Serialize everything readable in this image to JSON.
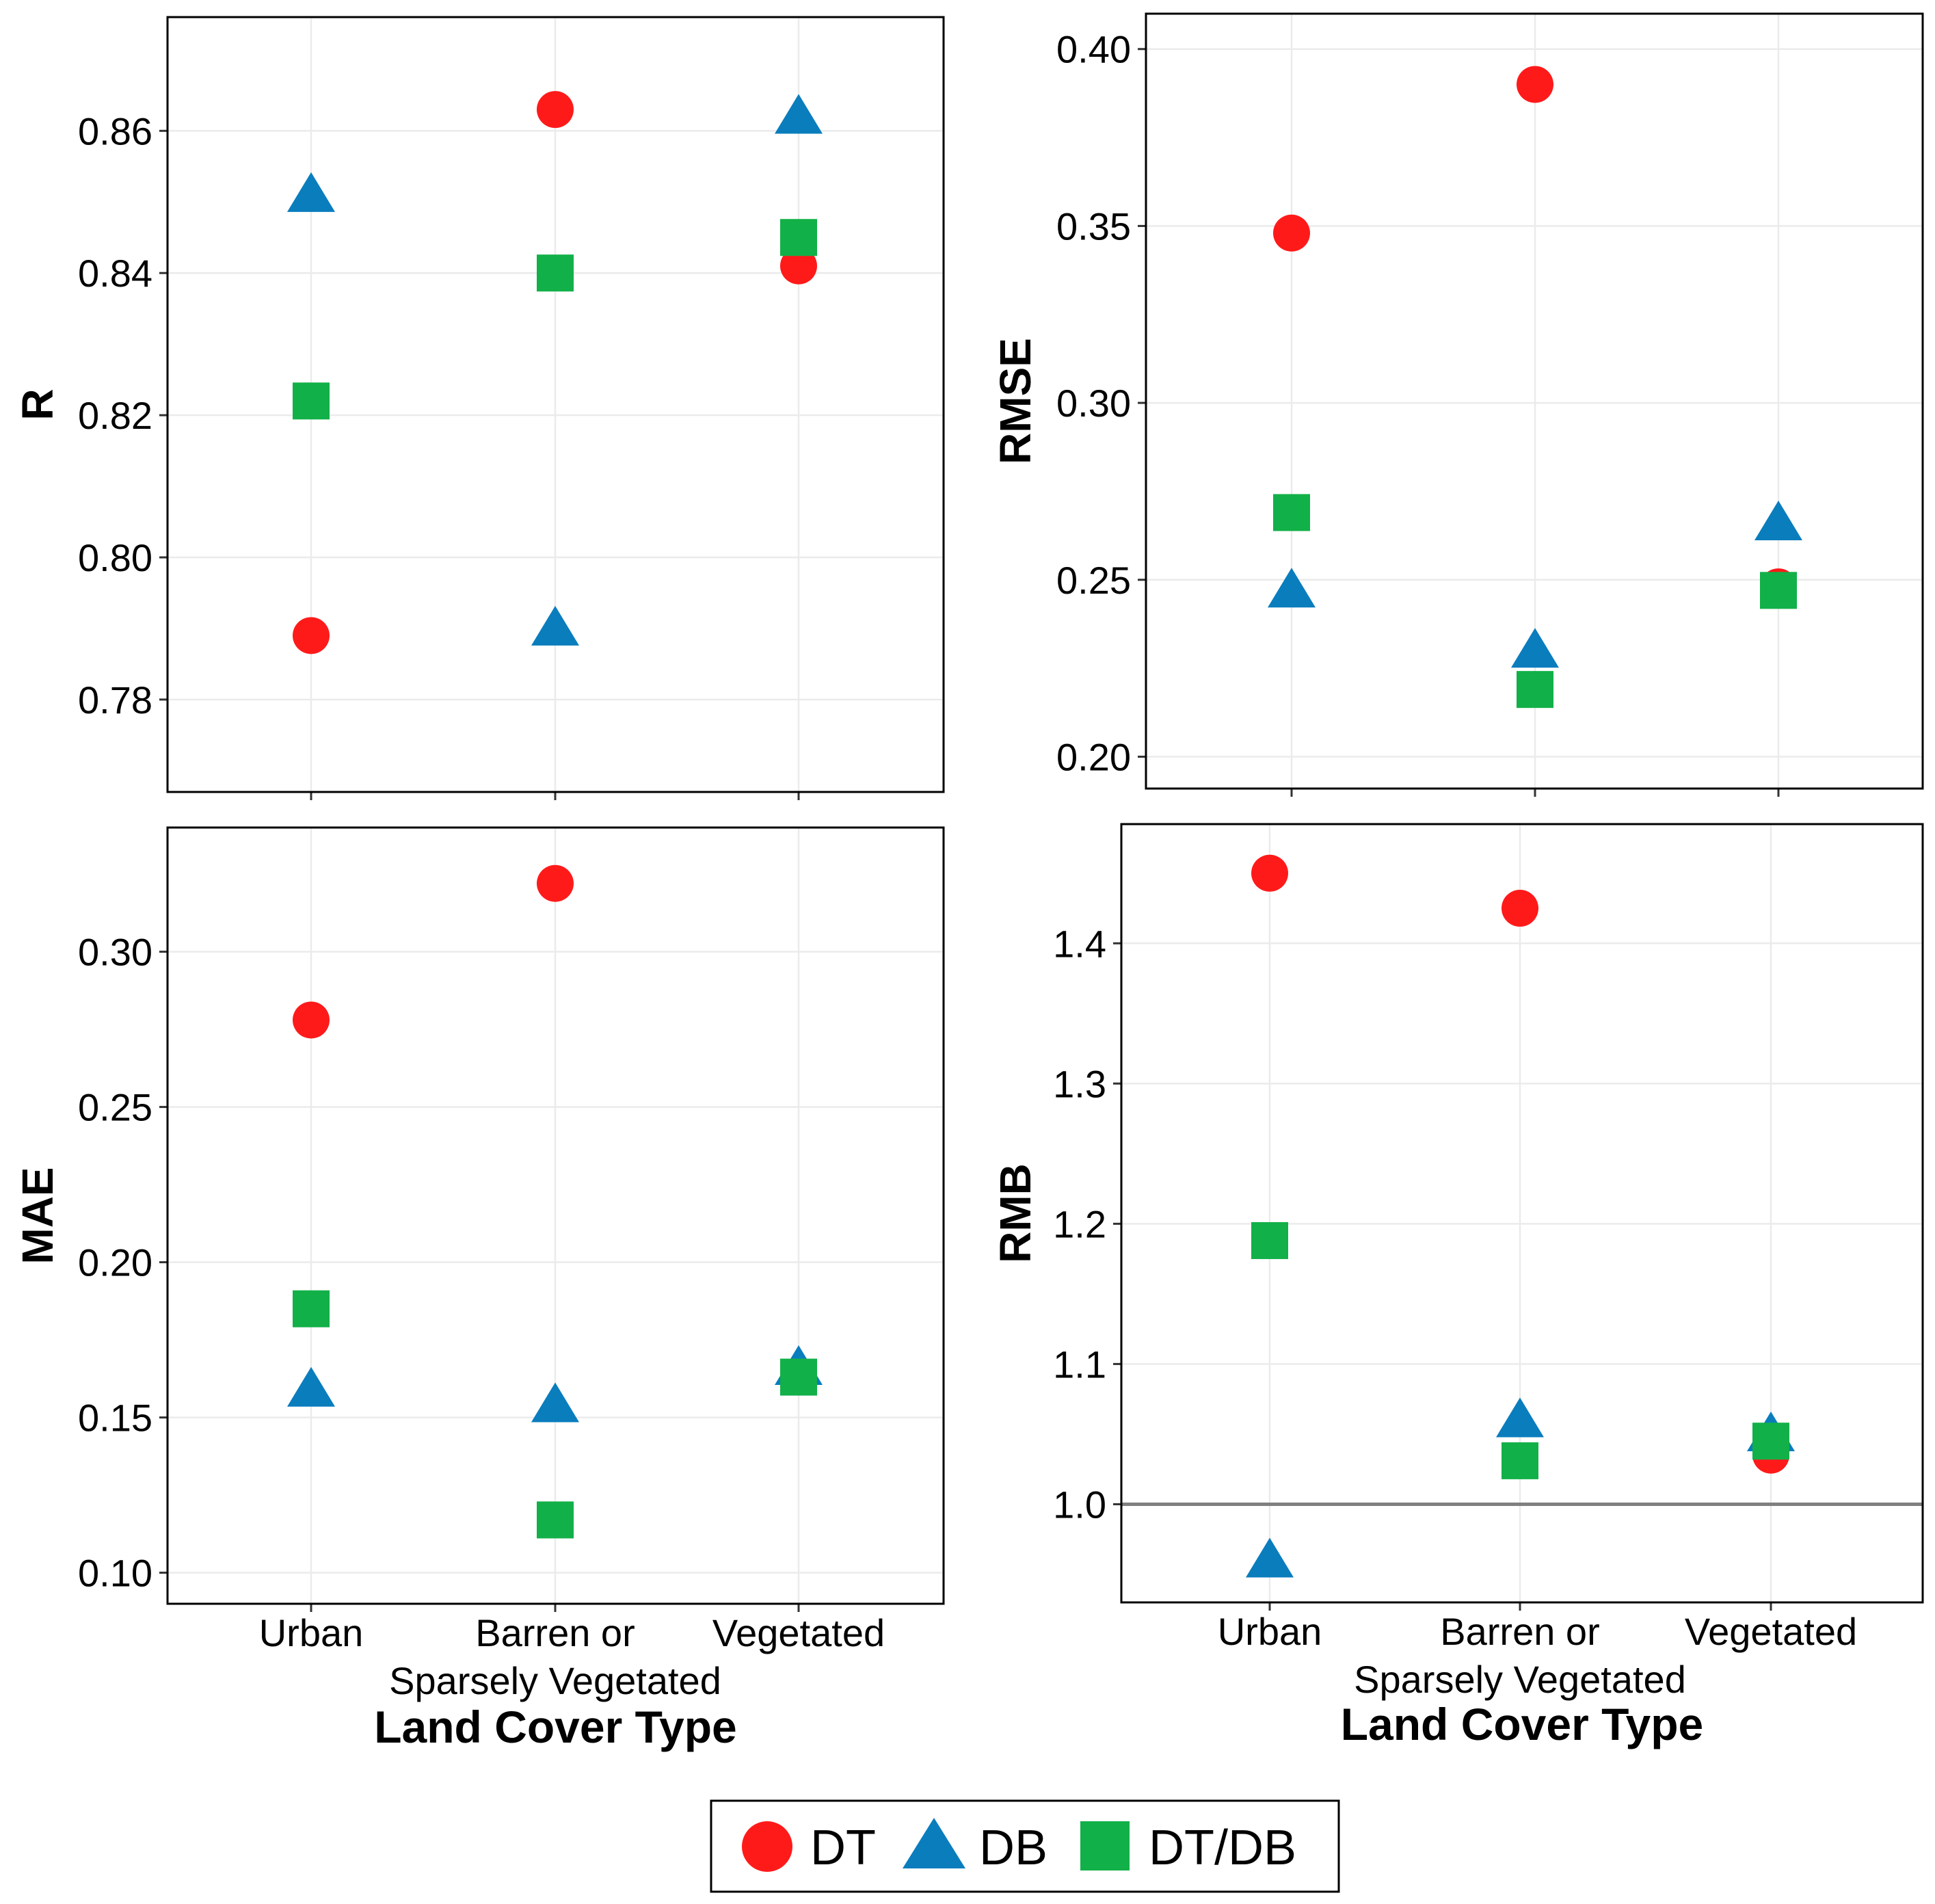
{
  "colors": {
    "DT": "#ff1a1a",
    "DB": "#0a7dbd",
    "DT/DB": "#12b048",
    "grid": "#ebebeb",
    "ref": "#7f7f7f"
  },
  "legend": [
    {
      "label": "DT",
      "shape": "circle"
    },
    {
      "label": "DB",
      "shape": "triangle"
    },
    {
      "label": "DT/DB",
      "shape": "square"
    }
  ],
  "chart_data": [
    {
      "type": "scatter",
      "ylabel": "R",
      "xlabel": "",
      "categories": [
        "Urban",
        "Barren or\nSparsely Vegetated",
        "Vegetated"
      ],
      "ylim": [
        0.767,
        0.876
      ],
      "yticks": [
        "0.78",
        "0.80",
        "0.82",
        "0.84",
        "0.86"
      ],
      "show_x_ticklabels": false,
      "series": [
        {
          "name": "DT",
          "values": [
            0.789,
            0.863,
            0.841
          ]
        },
        {
          "name": "DB",
          "values": [
            0.851,
            0.79,
            0.862
          ]
        },
        {
          "name": "DT/DB",
          "values": [
            0.822,
            0.84,
            0.845
          ]
        }
      ]
    },
    {
      "type": "scatter",
      "ylabel": "RMSE",
      "xlabel": "",
      "categories": [
        "Urban",
        "Barren or\nSparsely Vegetated",
        "Vegetated"
      ],
      "ylim": [
        0.191,
        0.41
      ],
      "yticks": [
        "0.20",
        "0.25",
        "0.30",
        "0.35",
        "0.40"
      ],
      "show_x_ticklabels": false,
      "series": [
        {
          "name": "DT",
          "values": [
            0.348,
            0.39,
            0.248
          ]
        },
        {
          "name": "DB",
          "values": [
            0.247,
            0.23,
            0.266
          ]
        },
        {
          "name": "DT/DB",
          "values": [
            0.269,
            0.219,
            0.247
          ]
        }
      ]
    },
    {
      "type": "scatter",
      "ylabel": "MAE",
      "xlabel": "Land Cover Type",
      "categories": [
        "Urban",
        "Barren or\nSparsely Vegetated",
        "Vegetated"
      ],
      "ylim": [
        0.09,
        0.34
      ],
      "yticks": [
        "0.10",
        "0.15",
        "0.20",
        "0.25",
        "0.30"
      ],
      "show_x_ticklabels": true,
      "series": [
        {
          "name": "DT",
          "values": [
            0.278,
            0.322,
            0.163
          ]
        },
        {
          "name": "DB",
          "values": [
            0.159,
            0.154,
            0.166
          ]
        },
        {
          "name": "DT/DB",
          "values": [
            0.185,
            0.117,
            0.163
          ]
        }
      ]
    },
    {
      "type": "scatter",
      "ylabel": "RMB",
      "xlabel": "Land Cover Type",
      "categories": [
        "Urban",
        "Barren or\nSparsely Vegetated",
        "Vegetated"
      ],
      "ylim": [
        0.93,
        1.485
      ],
      "yticks": [
        "1.0",
        "1.1",
        "1.2",
        "1.3",
        "1.4"
      ],
      "show_x_ticklabels": true,
      "hline": 1.0,
      "series": [
        {
          "name": "DT",
          "values": [
            1.45,
            1.425,
            1.035
          ]
        },
        {
          "name": "DB",
          "values": [
            0.96,
            1.06,
            1.05
          ]
        },
        {
          "name": "DT/DB",
          "values": [
            1.188,
            1.031,
            1.045
          ]
        }
      ]
    }
  ]
}
